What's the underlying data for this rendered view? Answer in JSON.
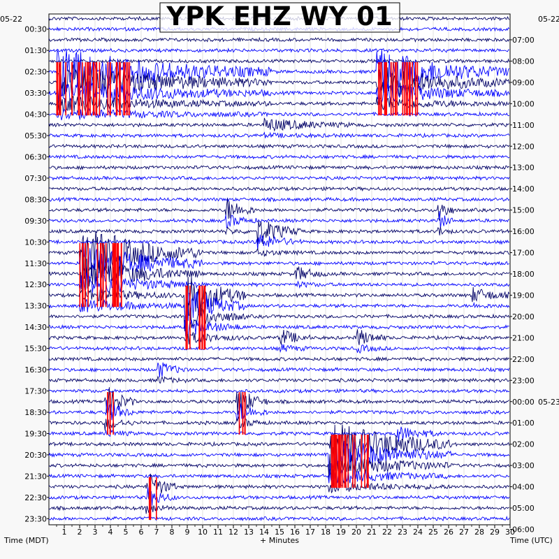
{
  "chart_data": {
    "type": "line",
    "title": "YPK EHZ WY 01",
    "left_date": "05-22",
    "right_date_top": "05-22",
    "right_date_change": "05-23",
    "xlabel_left": "Time (MDT)",
    "xlabel_center": "+ Minutes",
    "xlabel_right": "Time (UTC)",
    "x_ticks": [
      1,
      2,
      3,
      4,
      5,
      6,
      7,
      8,
      9,
      10,
      11,
      12,
      13,
      14,
      15,
      16,
      17,
      18,
      19,
      20,
      21,
      22,
      23,
      24,
      25,
      26,
      27,
      28,
      29,
      30
    ],
    "xlim": [
      0,
      30
    ],
    "left_times": [
      "00:30",
      "01:30",
      "02:30",
      "03:30",
      "04:30",
      "05:30",
      "06:30",
      "07:30",
      "08:30",
      "09:30",
      "10:30",
      "11:30",
      "12:30",
      "13:30",
      "14:30",
      "15:30",
      "16:30",
      "17:30",
      "18:30",
      "19:30",
      "20:30",
      "21:30",
      "22:30",
      "23:30"
    ],
    "right_times": [
      "07:00",
      "08:00",
      "09:00",
      "10:00",
      "11:00",
      "12:00",
      "13:00",
      "14:00",
      "15:00",
      "16:00",
      "17:00",
      "18:00",
      "19:00",
      "20:00",
      "21:00",
      "22:00",
      "23:00",
      "00:00",
      "01:00",
      "02:00",
      "03:00",
      "04:00",
      "05:00",
      "06:00"
    ],
    "trace_colors": [
      "#000066",
      "#0000ff"
    ],
    "clip_color": "#ff0000",
    "traces_per_hour": 2,
    "events": [
      {
        "hour": 2.5,
        "minute": 0.5,
        "duration_min": 14,
        "amp": 2.4,
        "clipped": true
      },
      {
        "hour": 2.5,
        "minute": 21.3,
        "duration_min": 9,
        "amp": 2.2,
        "clipped": true
      },
      {
        "hour": 11.0,
        "minute": 2.0,
        "duration_min": 8,
        "amp": 2.8,
        "clipped": true
      },
      {
        "hour": 12.8,
        "minute": 8.8,
        "duration_min": 4,
        "amp": 2.8,
        "clipped": true
      },
      {
        "hour": 18.0,
        "minute": 3.6,
        "duration_min": 2,
        "amp": 1.8,
        "clipped": true
      },
      {
        "hour": 18.0,
        "minute": 12.2,
        "duration_min": 2,
        "amp": 1.6,
        "clipped": true
      },
      {
        "hour": 20.0,
        "minute": 18.2,
        "duration_min": 8,
        "amp": 2.4,
        "clipped": true
      },
      {
        "hour": 22.0,
        "minute": 6.3,
        "duration_min": 2,
        "amp": 1.6,
        "clipped": true
      },
      {
        "hour": 9.0,
        "minute": 11.5,
        "duration_min": 2,
        "amp": 1.2,
        "clipped": false
      },
      {
        "hour": 10.0,
        "minute": 13.5,
        "duration_min": 3,
        "amp": 1.4,
        "clipped": false
      },
      {
        "hour": 12.0,
        "minute": 16.0,
        "duration_min": 2,
        "amp": 0.8,
        "clipped": false
      },
      {
        "hour": 15.0,
        "minute": 15.0,
        "duration_min": 2,
        "amp": 0.9,
        "clipped": false
      },
      {
        "hour": 15.0,
        "minute": 20.0,
        "duration_min": 2,
        "amp": 0.9,
        "clipped": false
      },
      {
        "hour": 16.5,
        "minute": 7.0,
        "duration_min": 2,
        "amp": 0.9,
        "clipped": false
      },
      {
        "hour": 19.5,
        "minute": 22.5,
        "duration_min": 3,
        "amp": 0.8,
        "clipped": false
      },
      {
        "hour": 13.0,
        "minute": 27.5,
        "duration_min": 3,
        "amp": 0.7,
        "clipped": false
      },
      {
        "hour": 9.0,
        "minute": 25.3,
        "duration_min": 1,
        "amp": 1.6,
        "clipped": false
      },
      {
        "hour": 5.0,
        "minute": 14.0,
        "duration_min": 6,
        "amp": 0.6,
        "clipped": false
      }
    ]
  }
}
